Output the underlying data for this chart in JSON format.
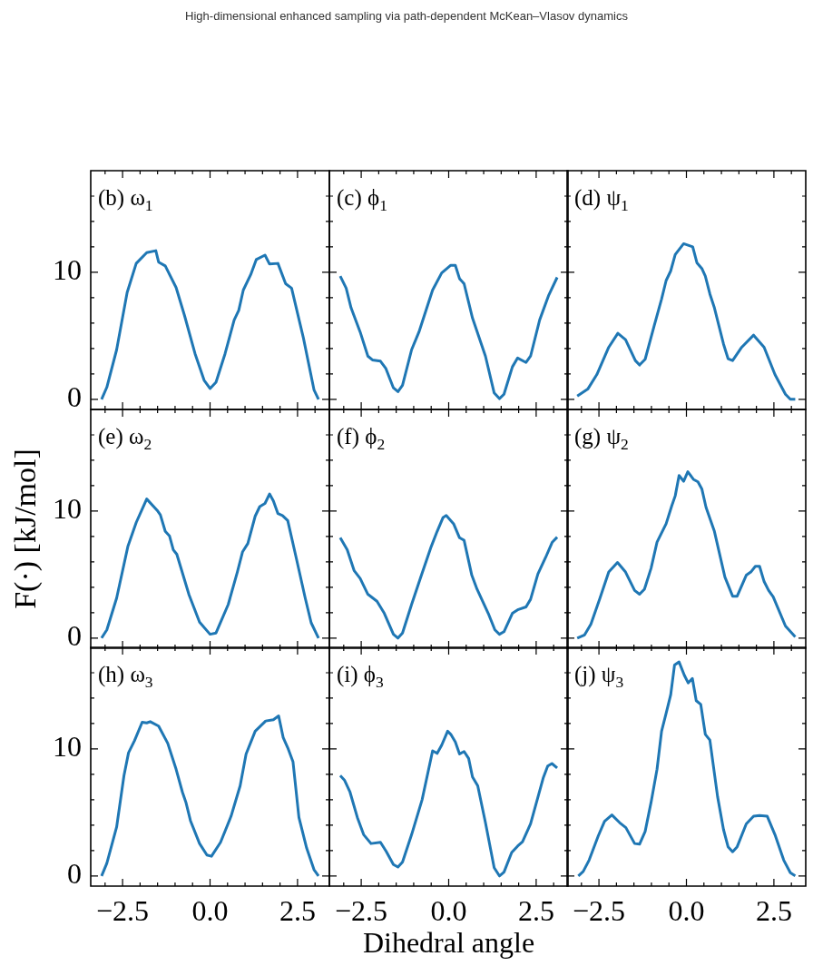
{
  "chart_data": [
    {
      "type": "line",
      "title": "(b) ω$_{1}$",
      "annotations": [
        "High-dimensional enhanced sampling via path-dependent McKean–Vlasov dynamics"
      ],
      "tick_labels": "y",
      "xlim": [
        -3.41,
        3.41
      ],
      "ylim": [
        -0.8,
        18
      ],
      "xticks": [
        {
          "value": -3,
          "label": null
        },
        {
          "value": -2.5,
          "label": null
        },
        {
          "value": -2,
          "label": null
        },
        {
          "value": -1.5,
          "label": null
        },
        {
          "value": -1,
          "label": null
        },
        {
          "value": -0.5,
          "label": null
        },
        {
          "value": 0,
          "label": null
        },
        {
          "value": 0.5,
          "label": null
        },
        {
          "value": 1,
          "label": null
        },
        {
          "value": 1.5,
          "label": null
        },
        {
          "value": 2,
          "label": null
        },
        {
          "value": 2.5,
          "label": null
        },
        {
          "value": 3,
          "label": null
        }
      ],
      "yticks": [
        {
          "value": 0,
          "label": "0"
        },
        {
          "value": 2,
          "label": null
        },
        {
          "value": 4,
          "label": null
        },
        {
          "value": 6,
          "label": null
        },
        {
          "value": 8,
          "label": null
        },
        {
          "value": 10,
          "label": "10"
        },
        {
          "value": 12,
          "label": null
        },
        {
          "value": 14,
          "label": null
        },
        {
          "value": 16,
          "label": null
        }
      ],
      "x": [
        -3.1,
        -2.95,
        -2.67,
        -2.37,
        -2.11,
        -1.81,
        -1.55,
        -1.47,
        -1.28,
        -0.97,
        -0.73,
        -0.43,
        -0.17,
        0,
        0.17,
        0.43,
        0.69,
        0.82,
        0.95,
        1.16,
        1.32,
        1.57,
        1.7,
        1.94,
        2.16,
        2.33,
        2.67,
        2.97,
        3.1
      ],
      "series": [
        {
          "color": "#1f77b4",
          "values": [
            0,
            0.95,
            3.9,
            8.4,
            10.7,
            11.55,
            11.7,
            10.8,
            10.5,
            8.8,
            6.6,
            3.6,
            1.5,
            0.85,
            1.35,
            3.6,
            6.25,
            7.0,
            8.6,
            9.8,
            11.0,
            11.35,
            10.65,
            10.7,
            9.1,
            8.75,
            4.8,
            0.75,
            0
          ]
        }
      ]
    },
    {
      "type": "line",
      "title": "(c) ϕ$_{1}$",
      "tick_labels": false,
      "xlim": [
        -3.41,
        3.41
      ],
      "ylim": [
        -0.8,
        18
      ],
      "xticks": [
        {
          "value": -3,
          "label": null
        },
        {
          "value": -2.5,
          "label": null
        },
        {
          "value": -2,
          "label": null
        },
        {
          "value": -1.5,
          "label": null
        },
        {
          "value": -1,
          "label": null
        },
        {
          "value": -0.5,
          "label": null
        },
        {
          "value": 0,
          "label": null
        },
        {
          "value": 0.5,
          "label": null
        },
        {
          "value": 1,
          "label": null
        },
        {
          "value": 1.5,
          "label": null
        },
        {
          "value": 2,
          "label": null
        },
        {
          "value": 2.5,
          "label": null
        },
        {
          "value": 3,
          "label": null
        }
      ],
      "yticks": [
        {
          "value": 0,
          "label": null
        },
        {
          "value": 2,
          "label": null
        },
        {
          "value": 4,
          "label": null
        },
        {
          "value": 6,
          "label": null
        },
        {
          "value": 8,
          "label": null
        },
        {
          "value": 10,
          "label": null
        },
        {
          "value": 12,
          "label": null
        },
        {
          "value": 14,
          "label": null
        },
        {
          "value": 16,
          "label": null
        }
      ],
      "x": [
        -3.1,
        -2.93,
        -2.79,
        -2.53,
        -2.31,
        -2.18,
        -1.95,
        -1.8,
        -1.58,
        -1.45,
        -1.32,
        -1.06,
        -0.85,
        -0.46,
        -0.2,
        0.06,
        0.19,
        0.31,
        0.44,
        0.68,
        1.05,
        1.3,
        1.45,
        1.58,
        1.82,
        1.97,
        2.21,
        2.34,
        2.6,
        2.86,
        3.1
      ],
      "series": [
        {
          "color": "#1f77b4",
          "values": [
            9.7,
            8.75,
            7.2,
            5.3,
            3.4,
            3.1,
            3.0,
            2.45,
            0.9,
            0.6,
            1.1,
            3.9,
            5.3,
            8.6,
            9.95,
            10.55,
            10.55,
            9.5,
            9.1,
            6.4,
            3.4,
            0.5,
            0.05,
            0.4,
            2.55,
            3.25,
            2.9,
            3.4,
            6.25,
            8.2,
            9.6
          ]
        }
      ]
    },
    {
      "type": "line",
      "title": "(d) ψ$_{1}$",
      "tick_labels": false,
      "xlim": [
        -3.41,
        3.41
      ],
      "ylim": [
        -0.8,
        18
      ],
      "xticks": [
        {
          "value": -3,
          "label": null
        },
        {
          "value": -2.5,
          "label": null
        },
        {
          "value": -2,
          "label": null
        },
        {
          "value": -1.5,
          "label": null
        },
        {
          "value": -1,
          "label": null
        },
        {
          "value": -0.5,
          "label": null
        },
        {
          "value": 0,
          "label": null
        },
        {
          "value": 0.5,
          "label": null
        },
        {
          "value": 1,
          "label": null
        },
        {
          "value": 1.5,
          "label": null
        },
        {
          "value": 2,
          "label": null
        },
        {
          "value": 2.5,
          "label": null
        },
        {
          "value": 3,
          "label": null
        }
      ],
      "yticks": [
        {
          "value": 0,
          "label": null
        },
        {
          "value": 2,
          "label": null
        },
        {
          "value": 4,
          "label": null
        },
        {
          "value": 6,
          "label": null
        },
        {
          "value": 8,
          "label": null
        },
        {
          "value": 10,
          "label": null
        },
        {
          "value": 12,
          "label": null
        },
        {
          "value": 14,
          "label": null
        },
        {
          "value": 16,
          "label": null
        }
      ],
      "x": [
        -3.12,
        -2.82,
        -2.56,
        -2.22,
        -1.96,
        -1.74,
        -1.46,
        -1.34,
        -1.18,
        -0.92,
        -0.71,
        -0.58,
        -0.45,
        -0.32,
        -0.08,
        0.18,
        0.3,
        0.44,
        0.54,
        0.67,
        0.8,
        1.06,
        1.19,
        1.32,
        1.58,
        1.92,
        2.22,
        2.53,
        2.83,
        2.97,
        3.11
      ],
      "series": [
        {
          "color": "#1f77b4",
          "values": [
            0.25,
            0.8,
            1.95,
            4.1,
            5.2,
            4.7,
            3.05,
            2.7,
            3.15,
            5.8,
            7.9,
            9.35,
            10.1,
            11.4,
            12.25,
            12.0,
            10.75,
            10.3,
            9.7,
            8.3,
            7.2,
            4.35,
            3.2,
            3.05,
            4.1,
            5.05,
            4.1,
            1.95,
            0.4,
            0,
            0
          ]
        }
      ]
    },
    {
      "type": "line",
      "title": "(e) ω$_{2}$",
      "ylabel": "F(·) [kJ/mol]",
      "tick_labels": "y",
      "xlim": [
        -3.41,
        3.41
      ],
      "ylim": [
        -0.8,
        18
      ],
      "xticks": [
        {
          "value": -3,
          "label": null
        },
        {
          "value": -2.5,
          "label": null
        },
        {
          "value": -2,
          "label": null
        },
        {
          "value": -1.5,
          "label": null
        },
        {
          "value": -1,
          "label": null
        },
        {
          "value": -0.5,
          "label": null
        },
        {
          "value": 0,
          "label": null
        },
        {
          "value": 0.5,
          "label": null
        },
        {
          "value": 1,
          "label": null
        },
        {
          "value": 1.5,
          "label": null
        },
        {
          "value": 2,
          "label": null
        },
        {
          "value": 2.5,
          "label": null
        },
        {
          "value": 3,
          "label": null
        }
      ],
      "yticks": [
        {
          "value": 0,
          "label": "0"
        },
        {
          "value": 2,
          "label": null
        },
        {
          "value": 4,
          "label": null
        },
        {
          "value": 6,
          "label": null
        },
        {
          "value": 8,
          "label": null
        },
        {
          "value": 10,
          "label": "10"
        },
        {
          "value": 12,
          "label": null
        },
        {
          "value": 14,
          "label": null
        },
        {
          "value": 16,
          "label": null
        }
      ],
      "x": [
        -3.1,
        -2.95,
        -2.67,
        -2.35,
        -2.11,
        -1.81,
        -1.51,
        -1.42,
        -1.28,
        -1.16,
        -1.05,
        -0.95,
        -0.6,
        -0.3,
        0,
        0.17,
        0.52,
        0.78,
        0.93,
        1.08,
        1.29,
        1.42,
        1.57,
        1.7,
        1.81,
        1.94,
        2.07,
        2.22,
        2.46,
        2.72,
        2.89,
        3.1
      ],
      "series": [
        {
          "color": "#1f77b4",
          "values": [
            0,
            0.65,
            3.15,
            7.2,
            9.1,
            10.95,
            10.05,
            9.7,
            8.4,
            8.05,
            6.95,
            6.6,
            3.4,
            1.25,
            0.3,
            0.4,
            2.65,
            5.2,
            6.8,
            7.45,
            9.6,
            10.35,
            10.6,
            11.35,
            10.8,
            9.8,
            9.65,
            9.25,
            6.35,
            3.15,
            1.2,
            0
          ]
        }
      ]
    },
    {
      "type": "line",
      "title": "(f) ϕ$_{2}$",
      "tick_labels": false,
      "xlim": [
        -3.41,
        3.41
      ],
      "ylim": [
        -0.8,
        18
      ],
      "xticks": [
        {
          "value": -3,
          "label": null
        },
        {
          "value": -2.5,
          "label": null
        },
        {
          "value": -2,
          "label": null
        },
        {
          "value": -1.5,
          "label": null
        },
        {
          "value": -1,
          "label": null
        },
        {
          "value": -0.5,
          "label": null
        },
        {
          "value": 0,
          "label": null
        },
        {
          "value": 0.5,
          "label": null
        },
        {
          "value": 1,
          "label": null
        },
        {
          "value": 1.5,
          "label": null
        },
        {
          "value": 2,
          "label": null
        },
        {
          "value": 2.5,
          "label": null
        },
        {
          "value": 3,
          "label": null
        }
      ],
      "yticks": [
        {
          "value": 0,
          "label": null
        },
        {
          "value": 2,
          "label": null
        },
        {
          "value": 4,
          "label": null
        },
        {
          "value": 6,
          "label": null
        },
        {
          "value": 8,
          "label": null
        },
        {
          "value": 10,
          "label": null
        },
        {
          "value": 12,
          "label": null
        },
        {
          "value": 14,
          "label": null
        },
        {
          "value": 16,
          "label": null
        }
      ],
      "x": [
        -3.1,
        -2.9,
        -2.7,
        -2.53,
        -2.31,
        -2.05,
        -1.84,
        -1.58,
        -1.45,
        -1.32,
        -1.06,
        -0.81,
        -0.5,
        -0.33,
        -0.16,
        -0.07,
        0.14,
        0.31,
        0.44,
        0.66,
        0.81,
        1.13,
        1.32,
        1.45,
        1.58,
        1.82,
        1.99,
        2.21,
        2.34,
        2.55,
        2.77,
        2.96,
        3.1
      ],
      "series": [
        {
          "color": "#1f77b4",
          "values": [
            7.9,
            6.95,
            5.3,
            4.7,
            3.45,
            2.9,
            1.95,
            0.3,
            0,
            0.4,
            2.65,
            4.7,
            7.2,
            8.4,
            9.5,
            9.65,
            9.0,
            7.9,
            7.7,
            4.95,
            3.85,
            1.95,
            0.65,
            0.3,
            0.5,
            1.95,
            2.25,
            2.45,
            3.05,
            5.05,
            6.35,
            7.55,
            7.95
          ]
        }
      ]
    },
    {
      "type": "line",
      "title": "(g) ψ$_{2}$",
      "tick_labels": false,
      "xlim": [
        -3.41,
        3.41
      ],
      "ylim": [
        -0.8,
        18
      ],
      "xticks": [
        {
          "value": -3,
          "label": null
        },
        {
          "value": -2.5,
          "label": null
        },
        {
          "value": -2,
          "label": null
        },
        {
          "value": -1.5,
          "label": null
        },
        {
          "value": -1,
          "label": null
        },
        {
          "value": -0.5,
          "label": null
        },
        {
          "value": 0,
          "label": null
        },
        {
          "value": 0.5,
          "label": null
        },
        {
          "value": 1,
          "label": null
        },
        {
          "value": 1.5,
          "label": null
        },
        {
          "value": 2,
          "label": null
        },
        {
          "value": 2.5,
          "label": null
        },
        {
          "value": 3,
          "label": null
        }
      ],
      "yticks": [
        {
          "value": 0,
          "label": null
        },
        {
          "value": 2,
          "label": null
        },
        {
          "value": 4,
          "label": null
        },
        {
          "value": 6,
          "label": null
        },
        {
          "value": 8,
          "label": null
        },
        {
          "value": 10,
          "label": null
        },
        {
          "value": 12,
          "label": null
        },
        {
          "value": 14,
          "label": null
        },
        {
          "value": 16,
          "label": null
        }
      ],
      "x": [
        -3.12,
        -2.91,
        -2.73,
        -2.47,
        -2.22,
        -1.97,
        -1.74,
        -1.48,
        -1.34,
        -1.2,
        -1.01,
        -0.84,
        -0.58,
        -0.42,
        -0.32,
        -0.21,
        -0.08,
        0.04,
        0.2,
        0.33,
        0.44,
        0.56,
        0.8,
        1.1,
        1.32,
        1.45,
        1.71,
        1.84,
        1.97,
        2.09,
        2.22,
        2.35,
        2.48,
        2.83,
        3.11
      ],
      "series": [
        {
          "color": "#1f77b4",
          "values": [
            0,
            0.25,
            1.1,
            3.15,
            5.2,
            5.95,
            5.2,
            3.75,
            3.45,
            3.85,
            5.5,
            7.55,
            9.0,
            10.4,
            11.2,
            12.8,
            12.35,
            13.1,
            12.5,
            12.3,
            11.75,
            10.3,
            8.4,
            4.8,
            3.3,
            3.3,
            4.95,
            5.2,
            5.65,
            5.65,
            4.45,
            3.75,
            3.25,
            0.95,
            0.1
          ]
        }
      ]
    },
    {
      "type": "line",
      "title": "(h) ω$_{3}$",
      "xlim": [
        -3.41,
        3.41
      ],
      "ylim": [
        -0.8,
        18
      ],
      "xticks": [
        {
          "value": -3,
          "label": null
        },
        {
          "value": -2.5,
          "label": "−2.5"
        },
        {
          "value": -2,
          "label": null
        },
        {
          "value": -1.5,
          "label": null
        },
        {
          "value": -1,
          "label": null
        },
        {
          "value": -0.5,
          "label": null
        },
        {
          "value": 0,
          "label": "0.0"
        },
        {
          "value": 0.5,
          "label": null
        },
        {
          "value": 1,
          "label": null
        },
        {
          "value": 1.5,
          "label": null
        },
        {
          "value": 2,
          "label": null
        },
        {
          "value": 2.5,
          "label": "2.5"
        },
        {
          "value": 3,
          "label": null
        }
      ],
      "yticks": [
        {
          "value": 0,
          "label": "0"
        },
        {
          "value": 2,
          "label": null
        },
        {
          "value": 4,
          "label": null
        },
        {
          "value": 6,
          "label": null
        },
        {
          "value": 8,
          "label": null
        },
        {
          "value": 10,
          "label": "10"
        },
        {
          "value": 12,
          "label": null
        },
        {
          "value": 14,
          "label": null
        },
        {
          "value": 16,
          "label": null
        }
      ],
      "x": [
        -3.1,
        -2.95,
        -2.67,
        -2.46,
        -2.33,
        -2.16,
        -1.94,
        -1.81,
        -1.71,
        -1.47,
        -1.21,
        -0.97,
        -0.79,
        -0.69,
        -0.56,
        -0.3,
        -0.09,
        0.04,
        0.3,
        0.6,
        0.86,
        1.03,
        1.29,
        1.59,
        1.81,
        1.96,
        2.09,
        2.22,
        2.37,
        2.54,
        2.76,
        2.97,
        3.1
      ],
      "series": [
        {
          "color": "#1f77b4",
          "values": [
            0,
            1.0,
            3.85,
            7.9,
            9.7,
            10.65,
            12.1,
            12.05,
            12.15,
            11.8,
            10.45,
            8.4,
            6.6,
            5.8,
            4.35,
            2.55,
            1.65,
            1.55,
            2.65,
            4.7,
            7.1,
            9.6,
            11.4,
            12.2,
            12.3,
            12.6,
            10.9,
            10.1,
            9.0,
            4.6,
            2.2,
            0.5,
            0
          ]
        }
      ]
    },
    {
      "type": "line",
      "title": "(i) ϕ$_{3}$",
      "xlabel": "Dihedral angle",
      "tick_labels": "x",
      "xlim": [
        -3.41,
        3.41
      ],
      "ylim": [
        -0.8,
        18
      ],
      "xticks": [
        {
          "value": -3,
          "label": null
        },
        {
          "value": -2.5,
          "label": "−2.5"
        },
        {
          "value": -2,
          "label": null
        },
        {
          "value": -1.5,
          "label": null
        },
        {
          "value": -1,
          "label": null
        },
        {
          "value": -0.5,
          "label": null
        },
        {
          "value": 0,
          "label": "0.0"
        },
        {
          "value": 0.5,
          "label": null
        },
        {
          "value": 1,
          "label": null
        },
        {
          "value": 1.5,
          "label": null
        },
        {
          "value": 2,
          "label": null
        },
        {
          "value": 2.5,
          "label": "2.5"
        },
        {
          "value": 3,
          "label": null
        }
      ],
      "yticks": [
        {
          "value": 0,
          "label": null
        },
        {
          "value": 2,
          "label": null
        },
        {
          "value": 4,
          "label": null
        },
        {
          "value": 6,
          "label": null
        },
        {
          "value": 8,
          "label": null
        },
        {
          "value": 10,
          "label": null
        },
        {
          "value": 12,
          "label": null
        },
        {
          "value": 14,
          "label": null
        },
        {
          "value": 16,
          "label": null
        }
      ],
      "x": [
        -3.1,
        -2.98,
        -2.82,
        -2.61,
        -2.43,
        -2.22,
        -1.95,
        -1.79,
        -1.58,
        -1.45,
        -1.32,
        -1.06,
        -0.76,
        -0.46,
        -0.33,
        -0.2,
        -0.03,
        0.06,
        0.19,
        0.31,
        0.44,
        0.57,
        0.68,
        0.83,
        1.05,
        1.3,
        1.45,
        1.58,
        1.8,
        1.97,
        2.11,
        2.34,
        2.51,
        2.7,
        2.83,
        2.95,
        3.1
      ],
      "series": [
        {
          "color": "#1f77b4",
          "values": [
            7.9,
            7.55,
            6.6,
            4.6,
            3.25,
            2.55,
            2.65,
            1.95,
            0.9,
            0.7,
            1.1,
            3.25,
            6.0,
            9.85,
            9.65,
            10.3,
            11.4,
            11.15,
            10.55,
            9.6,
            9.8,
            9.25,
            7.8,
            7.1,
            4.2,
            0.65,
            0,
            0.3,
            1.85,
            2.35,
            2.7,
            4.1,
            5.8,
            7.7,
            8.65,
            8.85,
            8.5
          ]
        }
      ]
    },
    {
      "type": "line",
      "title": "(j) ψ$_{3}$",
      "tick_labels": "x",
      "xlim": [
        -3.41,
        3.41
      ],
      "ylim": [
        -0.8,
        18
      ],
      "xticks": [
        {
          "value": -3,
          "label": null
        },
        {
          "value": -2.5,
          "label": "−2.5"
        },
        {
          "value": -2,
          "label": null
        },
        {
          "value": -1.5,
          "label": null
        },
        {
          "value": -1,
          "label": null
        },
        {
          "value": -0.5,
          "label": null
        },
        {
          "value": 0,
          "label": "0.0"
        },
        {
          "value": 0.5,
          "label": null
        },
        {
          "value": 1,
          "label": null
        },
        {
          "value": 1.5,
          "label": null
        },
        {
          "value": 2,
          "label": null
        },
        {
          "value": 2.5,
          "label": "2.5"
        },
        {
          "value": 3,
          "label": null
        }
      ],
      "yticks": [
        {
          "value": 0,
          "label": null
        },
        {
          "value": 2,
          "label": null
        },
        {
          "value": 4,
          "label": null
        },
        {
          "value": 6,
          "label": null
        },
        {
          "value": 8,
          "label": null
        },
        {
          "value": 10,
          "label": null
        },
        {
          "value": 12,
          "label": null
        },
        {
          "value": 14,
          "label": null
        },
        {
          "value": 16,
          "label": null
        }
      ],
      "x": [
        -3.09,
        -2.95,
        -2.78,
        -2.52,
        -2.34,
        -2.13,
        -1.91,
        -1.73,
        -1.48,
        -1.34,
        -1.18,
        -1.01,
        -0.84,
        -0.71,
        -0.58,
        -0.45,
        -0.34,
        -0.21,
        -0.06,
        0.05,
        0.17,
        0.28,
        0.41,
        0.54,
        0.67,
        0.89,
        1.06,
        1.19,
        1.32,
        1.45,
        1.71,
        1.92,
        2.09,
        2.31,
        2.53,
        2.78,
        2.97,
        3.11
      ],
      "series": [
        {
          "color": "#1f77b4",
          "values": [
            0,
            0.35,
            1.25,
            3.15,
            4.3,
            4.8,
            4.2,
            3.8,
            2.55,
            2.5,
            3.5,
            5.8,
            8.4,
            11.4,
            12.8,
            14.25,
            16.6,
            16.85,
            15.8,
            15.2,
            15.55,
            13.8,
            13.5,
            11.15,
            10.7,
            6.25,
            3.65,
            2.3,
            1.9,
            2.3,
            4.1,
            4.7,
            4.75,
            4.7,
            3.25,
            1.25,
            0.25,
            0
          ]
        }
      ]
    }
  ]
}
